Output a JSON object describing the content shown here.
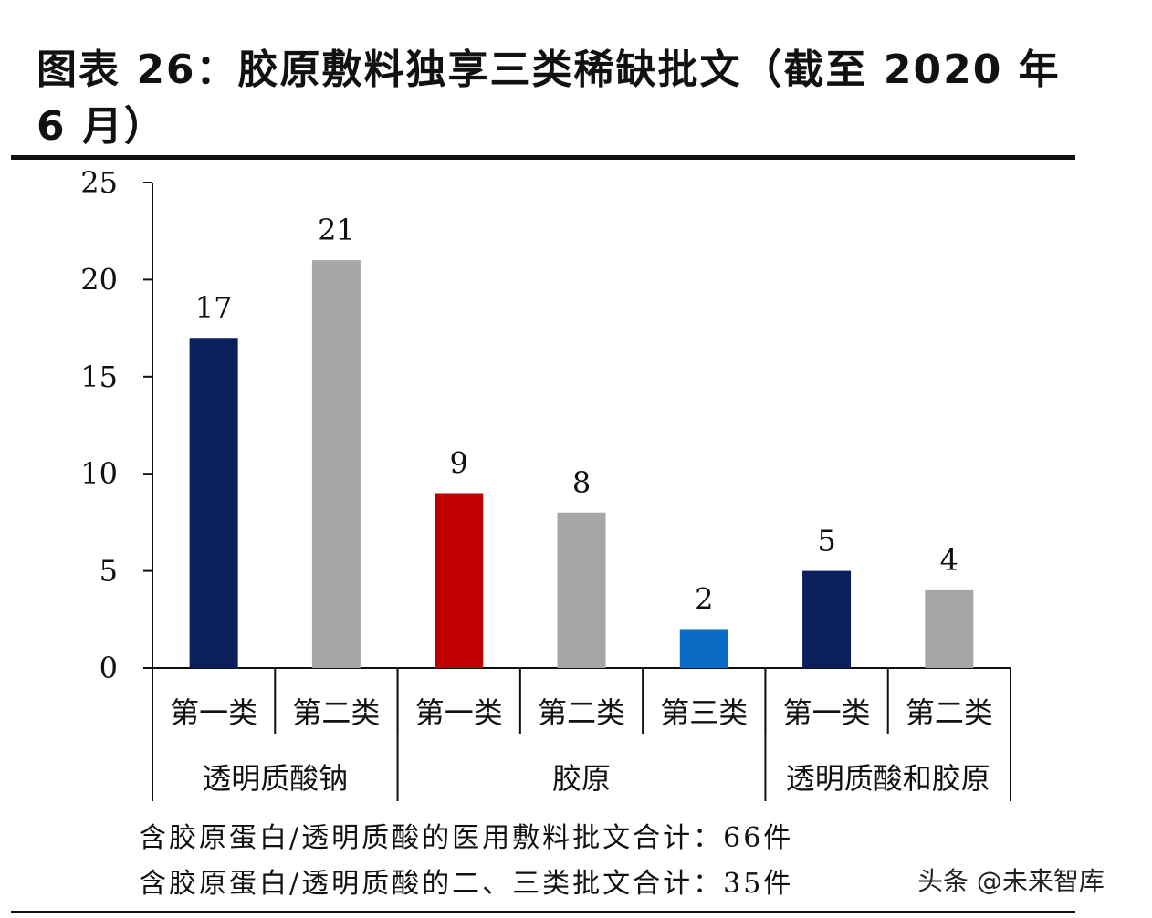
{
  "title": "图表 26：胶原敷料独享三类稀缺批文（截至 2020 年 6 月）",
  "notes": {
    "line1": "含胶原蛋白/透明质酸的医用敷料批文合计：66件",
    "line2": "含胶原蛋白/透明质酸的二、三类批文合计：35件"
  },
  "watermark": "头条 @未来智库",
  "chart_data": {
    "type": "bar",
    "ylim": [
      0,
      25
    ],
    "yticks": [
      0,
      5,
      10,
      15,
      20,
      25
    ],
    "grid": false,
    "legend": "none",
    "groups": [
      {
        "name": "透明质酸钠",
        "categories": [
          "第一类",
          "第二类"
        ]
      },
      {
        "name": "胶原",
        "categories": [
          "第一类",
          "第二类",
          "第三类"
        ]
      },
      {
        "name": "透明质酸和胶原",
        "categories": [
          "第一类",
          "第二类"
        ]
      }
    ],
    "categories": [
      "第一类",
      "第二类",
      "第一类",
      "第二类",
      "第三类",
      "第一类",
      "第二类"
    ],
    "values": [
      17,
      21,
      9,
      8,
      2,
      5,
      4
    ],
    "colors": [
      "#0b1f5c",
      "#a6a6a8",
      "#c00000",
      "#a6a6a8",
      "#0a6cc4",
      "#0b1f5c",
      "#a6a6a8"
    ]
  }
}
